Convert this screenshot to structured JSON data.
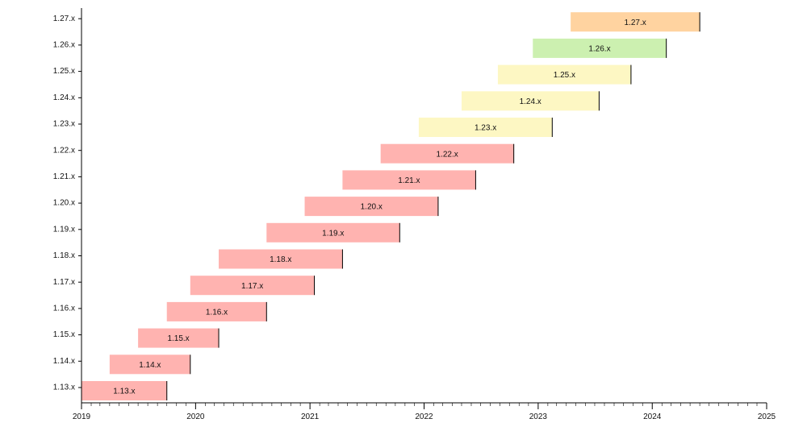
{
  "chart_data": {
    "type": "timeline",
    "title": "",
    "xlabel": "",
    "ylabel": "",
    "x_axis": {
      "min": "2019-01-01",
      "max": "2025-01-01",
      "tick_labels": [
        "2019",
        "2020",
        "2021",
        "2022",
        "2023",
        "2024",
        "2025"
      ],
      "minor_ticks": "monthly"
    },
    "grid": false,
    "legend": "none",
    "colors": {
      "end_of_life": "#ffb3b0",
      "maintenance": "#fdf7c3",
      "current": "#ccf0b0",
      "upcoming": "#ffd3a0"
    },
    "categories": [
      "1.13.x",
      "1.14.x",
      "1.15.x",
      "1.16.x",
      "1.17.x",
      "1.18.x",
      "1.19.x",
      "1.20.x",
      "1.21.x",
      "1.22.x",
      "1.23.x",
      "1.24.x",
      "1.25.x",
      "1.26.x",
      "1.27.x"
    ],
    "bars": [
      {
        "label": "1.13.x",
        "start": "2018-12-01",
        "end": "2019-10-01",
        "color": "#ffb3b0"
      },
      {
        "label": "1.14.x",
        "start": "2019-04-01",
        "end": "2019-12-15",
        "color": "#ffb3b0"
      },
      {
        "label": "1.15.x",
        "start": "2019-07-01",
        "end": "2020-03-15",
        "color": "#ffb3b0"
      },
      {
        "label": "1.16.x",
        "start": "2019-10-01",
        "end": "2020-08-15",
        "color": "#ffb3b0"
      },
      {
        "label": "1.17.x",
        "start": "2019-12-15",
        "end": "2021-01-15",
        "color": "#ffb3b0"
      },
      {
        "label": "1.18.x",
        "start": "2020-03-15",
        "end": "2021-04-15",
        "color": "#ffb3b0"
      },
      {
        "label": "1.19.x",
        "start": "2020-08-15",
        "end": "2021-10-15",
        "color": "#ffb3b0"
      },
      {
        "label": "1.20.x",
        "start": "2020-12-15",
        "end": "2022-02-15",
        "color": "#ffb3b0"
      },
      {
        "label": "1.21.x",
        "start": "2021-04-15",
        "end": "2022-06-15",
        "color": "#ffb3b0"
      },
      {
        "label": "1.22.x",
        "start": "2021-08-15",
        "end": "2022-10-15",
        "color": "#ffb3b0"
      },
      {
        "label": "1.23.x",
        "start": "2021-12-15",
        "end": "2023-02-15",
        "color": "#fdf7c3"
      },
      {
        "label": "1.24.x",
        "start": "2022-05-01",
        "end": "2023-07-15",
        "color": "#fdf7c3"
      },
      {
        "label": "1.25.x",
        "start": "2022-08-25",
        "end": "2023-10-25",
        "color": "#fdf7c3"
      },
      {
        "label": "1.26.x",
        "start": "2022-12-15",
        "end": "2024-02-15",
        "color": "#ccf0b0"
      },
      {
        "label": "1.27.x",
        "start": "2023-04-15",
        "end": "2024-06-01",
        "color": "#ffd3a0"
      }
    ]
  }
}
